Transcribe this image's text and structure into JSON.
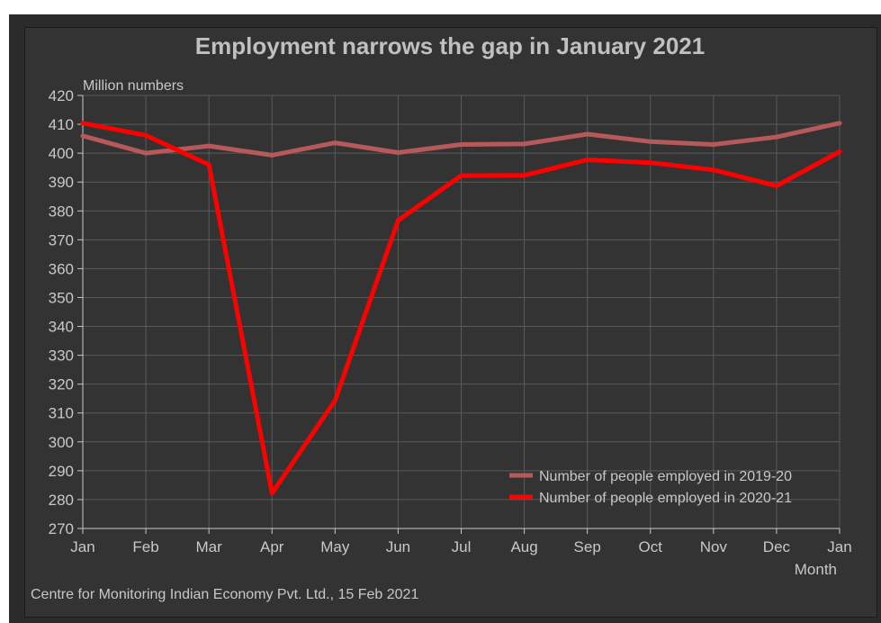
{
  "chart_data": {
    "type": "line",
    "title": "Employment narrows the gap in January 2021",
    "ylabel": "Million numbers",
    "xlabel": "Month",
    "source": "Centre for Monitoring Indian Economy Pvt. Ltd., 15 Feb 2021",
    "categories": [
      "Jan",
      "Feb",
      "Mar",
      "Apr",
      "May",
      "Jun",
      "Jul",
      "Aug",
      "Sep",
      "Oct",
      "Nov",
      "Dec",
      "Jan"
    ],
    "ylim": [
      270,
      420
    ],
    "yticks": [
      270,
      280,
      290,
      300,
      310,
      320,
      330,
      340,
      350,
      360,
      370,
      380,
      390,
      400,
      410,
      420
    ],
    "grid": true,
    "legend_position": "bottom-right",
    "series": [
      {
        "name": "Number of people employed in 2019-20",
        "color": "#b5595b",
        "values": [
          406.0,
          400.0,
          402.5,
          399.3,
          403.6,
          400.2,
          403.0,
          403.2,
          406.6,
          404.0,
          403.0,
          405.6,
          410.4
        ]
      },
      {
        "name": "Number of people employed in 2020-21",
        "color": "#ff0000",
        "values": [
          410.4,
          406.2,
          396.0,
          282.2,
          314.3,
          376.7,
          392.2,
          392.3,
          397.7,
          396.7,
          394.2,
          388.7,
          400.5
        ]
      }
    ]
  }
}
